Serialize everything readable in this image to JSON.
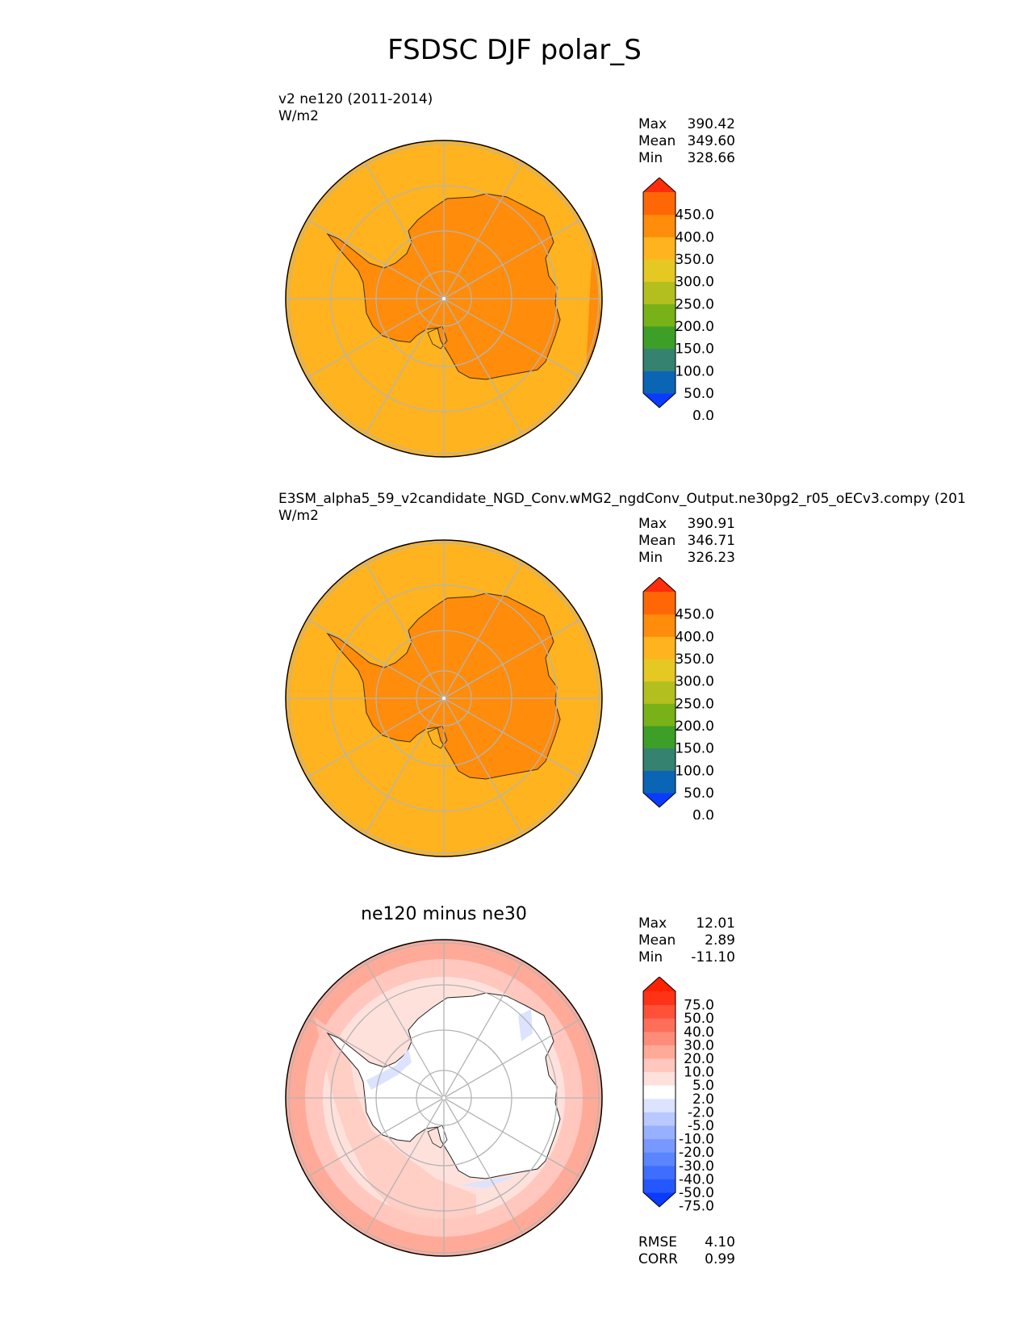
{
  "title": "FSDSC DJF polar_S",
  "panels": [
    {
      "id": "test",
      "label": "v2 ne120 (2011-2014)",
      "units": "W/m2",
      "stats": [
        {
          "name": "Max",
          "value": "390.42"
        },
        {
          "name": "Mean",
          "value": "349.60"
        },
        {
          "name": "Min",
          "value": "328.66"
        }
      ],
      "colorbar_ticks": [
        "450.0",
        "400.0",
        "350.0",
        "300.0",
        "250.0",
        "200.0",
        "150.0",
        "100.0",
        "50.0",
        "0.0"
      ]
    },
    {
      "id": "reference",
      "label": "E3SM_alpha5_59_v2candidate_NGD_Conv.wMG2_ngdConv_Output.ne30pg2_r05_oECv3.compy (201",
      "units": "W/m2",
      "stats": [
        {
          "name": "Max",
          "value": "390.91"
        },
        {
          "name": "Mean",
          "value": "346.71"
        },
        {
          "name": "Min",
          "value": "326.23"
        }
      ],
      "colorbar_ticks": [
        "450.0",
        "400.0",
        "350.0",
        "300.0",
        "250.0",
        "200.0",
        "150.0",
        "100.0",
        "50.0",
        "0.0"
      ]
    },
    {
      "id": "difference",
      "title": "ne120 minus ne30",
      "stats": [
        {
          "name": "Max",
          "value": "12.01"
        },
        {
          "name": "Mean",
          "value": "2.89"
        },
        {
          "name": "Min",
          "value": "-11.10"
        }
      ],
      "colorbar_ticks": [
        "75.0",
        "50.0",
        "40.0",
        "30.0",
        "20.0",
        "10.0",
        "5.0",
        "2.0",
        "-2.0",
        "-5.0",
        "-10.0",
        "-20.0",
        "-30.0",
        "-40.0",
        "-50.0",
        "-75.0"
      ],
      "metrics": [
        {
          "name": "RMSE",
          "value": "4.10"
        },
        {
          "name": "CORR",
          "value": "0.99"
        }
      ]
    }
  ],
  "colors": {
    "abs_levels": [
      "#0a3bff",
      "#0a66b5",
      "#358270",
      "#3d9e28",
      "#78b218",
      "#b3bf1e",
      "#e6c822",
      "#ffb31e",
      "#ff8c0a",
      "#ff6605",
      "#ff2d0a"
    ],
    "diff_levels": [
      "#0a3bff",
      "#2557ff",
      "#3f6dff",
      "#5a85ff",
      "#7799ff",
      "#97b0ff",
      "#b9c8ff",
      "#dbe3ff",
      "#ffffff",
      "#ffe1dc",
      "#ffc7bd",
      "#ffaa98",
      "#ff8c78",
      "#ff6e58",
      "#ff5038",
      "#ff3216",
      "#ff2200"
    ],
    "ocean_fill": "#ffb31e",
    "land_fill": "#ff8c0a",
    "rim_fill": "#ff8c0a",
    "gridline": "#b4b4b4"
  }
}
